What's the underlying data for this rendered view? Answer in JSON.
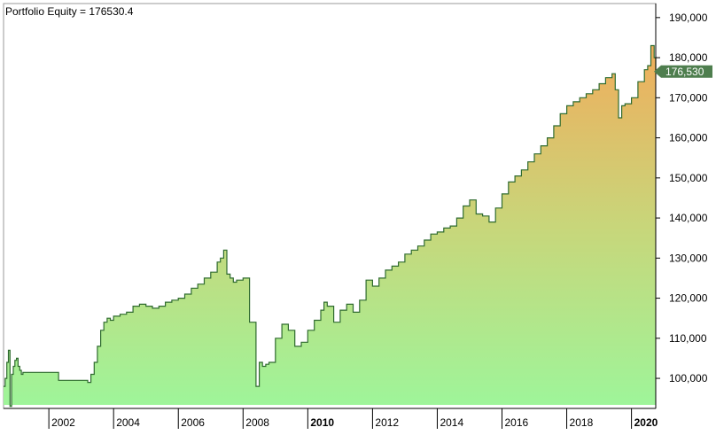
{
  "chart_data": {
    "type": "area",
    "title": "Portfolio Equity = 176530.4",
    "xlabel": "",
    "ylabel": "",
    "xlim": [
      2000.6,
      2020.75
    ],
    "ylim": [
      92500,
      193500
    ],
    "y_ticks": [
      100000,
      110000,
      120000,
      130000,
      140000,
      150000,
      160000,
      170000,
      180000,
      190000
    ],
    "y_tick_labels": [
      "100,000",
      "110,000",
      "120,000",
      "130,000",
      "140,000",
      "150,000",
      "160,000",
      "170,000",
      "180,000",
      "190,000"
    ],
    "x_ticks": [
      2002,
      2004,
      2006,
      2008,
      2010,
      2012,
      2014,
      2016,
      2018,
      2020
    ],
    "x_tick_labels": [
      "2002",
      "2004",
      "2006",
      "2008",
      "2010",
      "2012",
      "2014",
      "2016",
      "2018",
      "2020"
    ],
    "x_bold_ticks": [
      2010,
      2020
    ],
    "grid": false,
    "last_value_label": "176,530",
    "colors": {
      "line": "#2f6b2f",
      "fill_top": "#f0ad5c",
      "fill_mid": "#c8d67a",
      "fill_bottom": "#9ef59a",
      "label_bg": "#4e7e4e",
      "axis": "#000000"
    },
    "series": [
      {
        "x": [
          2000.6,
          2000.65,
          2000.7,
          2000.75,
          2000.8,
          2000.85,
          2000.9,
          2000.95,
          2001.0,
          2001.05,
          2001.1,
          2001.15,
          2001.2,
          2001.25,
          2002.1,
          2002.3,
          2003.2,
          2003.3,
          2003.4,
          2003.5,
          2003.6,
          2003.7,
          2003.8,
          2003.9,
          2004.0,
          2004.2,
          2004.4,
          2004.6,
          2004.8,
          2005.0,
          2005.2,
          2005.4,
          2005.6,
          2005.8,
          2006.0,
          2006.2,
          2006.4,
          2006.6,
          2006.8,
          2007.0,
          2007.2,
          2007.3,
          2007.4,
          2007.5,
          2007.6,
          2007.7,
          2007.8,
          2008.0,
          2008.2,
          2008.4,
          2008.5,
          2008.6,
          2008.7,
          2008.8,
          2009.0,
          2009.2,
          2009.4,
          2009.6,
          2009.8,
          2010.0,
          2010.2,
          2010.4,
          2010.5,
          2010.6,
          2010.8,
          2011.0,
          2011.2,
          2011.4,
          2011.6,
          2011.8,
          2012.0,
          2012.2,
          2012.4,
          2012.6,
          2012.8,
          2013.0,
          2013.2,
          2013.4,
          2013.6,
          2013.8,
          2014.0,
          2014.2,
          2014.4,
          2014.6,
          2014.8,
          2015.0,
          2015.2,
          2015.4,
          2015.6,
          2015.8,
          2016.0,
          2016.2,
          2016.4,
          2016.6,
          2016.8,
          2017.0,
          2017.2,
          2017.4,
          2017.6,
          2017.8,
          2018.0,
          2018.2,
          2018.4,
          2018.6,
          2018.8,
          2019.0,
          2019.2,
          2019.4,
          2019.5,
          2019.6,
          2019.7,
          2019.8,
          2020.0,
          2020.2,
          2020.4,
          2020.5,
          2020.6,
          2020.7,
          2020.75
        ],
        "values": [
          98000,
          100000,
          104000,
          107000,
          93000,
          101000,
          103000,
          104500,
          105000,
          103000,
          102000,
          101000,
          101500,
          101500,
          101500,
          99500,
          99000,
          101000,
          104000,
          108000,
          112000,
          114000,
          115000,
          114500,
          115500,
          116000,
          116500,
          118000,
          118500,
          118000,
          117500,
          118000,
          119000,
          119500,
          120000,
          121000,
          122500,
          123500,
          125000,
          126500,
          129000,
          130000,
          132000,
          126000,
          125000,
          124000,
          124500,
          125000,
          114000,
          98000,
          104000,
          103000,
          103500,
          104000,
          110000,
          113500,
          112000,
          108000,
          109000,
          112000,
          114500,
          117000,
          119000,
          118000,
          114000,
          117000,
          118500,
          116500,
          119500,
          124500,
          123000,
          125000,
          127000,
          128000,
          129000,
          131000,
          132000,
          133000,
          134500,
          136000,
          136500,
          137500,
          138000,
          140000,
          143000,
          144500,
          141000,
          140500,
          139000,
          142500,
          146000,
          149000,
          150500,
          152000,
          154000,
          156000,
          158000,
          160000,
          163000,
          166000,
          168000,
          169000,
          170000,
          171000,
          172000,
          173500,
          175000,
          176000,
          172000,
          165000,
          168000,
          168500,
          170000,
          174000,
          177000,
          178000,
          183000,
          180000,
          176530
        ]
      }
    ]
  }
}
